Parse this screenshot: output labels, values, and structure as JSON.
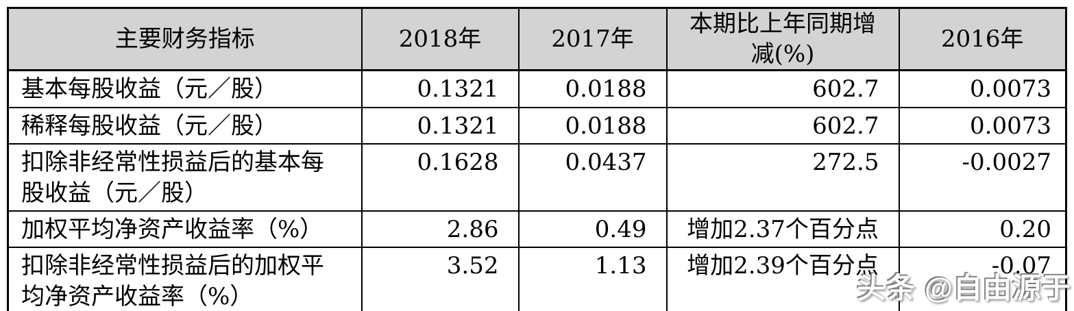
{
  "table": {
    "header": {
      "columns": [
        {
          "lines": [
            "主要财务指标"
          ]
        },
        {
          "lines": [
            "2018年"
          ]
        },
        {
          "lines": [
            "2017年"
          ]
        },
        {
          "lines": [
            "本期比上年同期增",
            "减(%)"
          ]
        },
        {
          "lines": [
            "2016年"
          ]
        }
      ]
    },
    "rows": [
      {
        "label_lines": [
          "基本每股收益（元／股）"
        ],
        "values": [
          "0.1321",
          "0.0188",
          "602.7",
          "0.0073"
        ]
      },
      {
        "label_lines": [
          "稀释每股收益（元／股）"
        ],
        "values": [
          "0.1321",
          "0.0188",
          "602.7",
          "0.0073"
        ]
      },
      {
        "label_lines": [
          "扣除非经常性损益后的基本每",
          "股收益（元／股）"
        ],
        "values": [
          "0.1628",
          "0.0437",
          "272.5",
          "-0.0027"
        ]
      },
      {
        "label_lines": [
          "加权平均净资产收益率（%）"
        ],
        "values": [
          "2.86",
          "0.49",
          "增加2.37个百分点",
          "0.20"
        ]
      },
      {
        "label_lines": [
          "扣除非经常性损益后的加权平",
          "均净资产收益率（%）"
        ],
        "values": [
          "3.52",
          "1.13",
          "增加2.39个百分点",
          "-0.07"
        ]
      }
    ]
  },
  "watermark": {
    "text": "头条 @自由源于"
  },
  "colors": {
    "header_bg": "#d3d3d3",
    "border": "#000000",
    "text": "#000000",
    "watermark_text": "#ffffff"
  }
}
